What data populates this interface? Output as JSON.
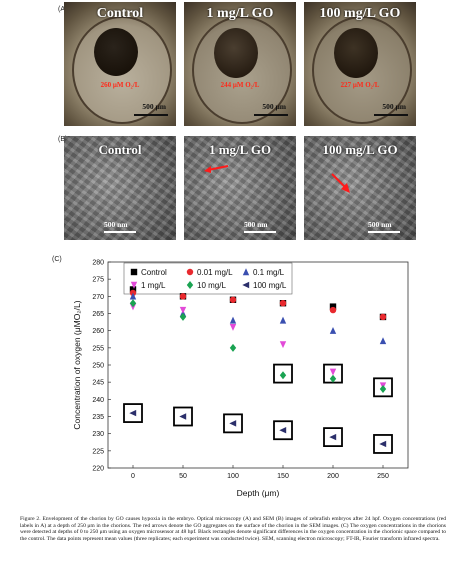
{
  "panel_a": {
    "letter": "(A)",
    "images": [
      {
        "title": "Control",
        "oxygen_label": "260 μM O₂/L",
        "scale_label": "500 μm"
      },
      {
        "title": "1 mg/L GO",
        "oxygen_label": "244 μM O₂/L",
        "scale_label": "500 μm"
      },
      {
        "title": "100 mg/L GO",
        "oxygen_label": "227 μM O₂/L",
        "scale_label": "500 μm"
      }
    ]
  },
  "panel_b": {
    "letter": "(B)",
    "images": [
      {
        "title": "Control",
        "scale_label": "500 nm"
      },
      {
        "title": "1 mg/L GO",
        "scale_label": "500 nm"
      },
      {
        "title": "100 mg/L GO",
        "scale_label": "500 nm"
      }
    ]
  },
  "panel_c": {
    "letter": "(C)"
  },
  "chart_data": {
    "type": "scatter",
    "xlabel": "Depth (μm)",
    "ylabel": "Concentration of oxygen (μMO₂/L)",
    "xlim": [
      -25,
      275
    ],
    "ylim": [
      220,
      280
    ],
    "xticks": [
      0,
      50,
      100,
      150,
      200,
      250
    ],
    "yticks": [
      220,
      225,
      230,
      235,
      240,
      245,
      250,
      255,
      260,
      265,
      270,
      275,
      280
    ],
    "grid": false,
    "legend_position": "top",
    "series": [
      {
        "name": "Control",
        "marker": "square",
        "color": "#000000",
        "x": [
          0,
          50,
          100,
          150,
          200,
          250
        ],
        "y": [
          272,
          270,
          269,
          268,
          267,
          264
        ]
      },
      {
        "name": "0.01 mg/L",
        "marker": "circle",
        "color": "#e8292e",
        "x": [
          0,
          50,
          100,
          150,
          200,
          250
        ],
        "y": [
          271,
          270,
          269,
          268,
          266,
          264
        ]
      },
      {
        "name": "0.1 mg/L",
        "marker": "triangle-up",
        "color": "#3a4fb0",
        "x": [
          0,
          50,
          100,
          150,
          200,
          250
        ],
        "y": [
          270,
          265,
          263,
          263,
          260,
          257
        ]
      },
      {
        "name": "1 mg/L",
        "marker": "triangle-down",
        "color": "#e24ad8",
        "x": [
          0,
          50,
          100,
          150,
          200,
          250
        ],
        "y": [
          267,
          266,
          261,
          256,
          248,
          244
        ]
      },
      {
        "name": "10 mg/L",
        "marker": "diamond",
        "color": "#1aa352",
        "x": [
          0,
          50,
          100,
          150,
          200,
          250
        ],
        "y": [
          268,
          264,
          255,
          247,
          246,
          243
        ]
      },
      {
        "name": "100 mg/L",
        "marker": "triangle-left",
        "color": "#2b2f6b",
        "x": [
          0,
          50,
          100,
          150,
          200,
          250
        ],
        "y": [
          236,
          235,
          233,
          231,
          229,
          227
        ]
      }
    ],
    "highlight_boxes": [
      {
        "x": 0,
        "y": 236
      },
      {
        "x": 50,
        "y": 235
      },
      {
        "x": 100,
        "y": 233
      },
      {
        "x": 150,
        "y": 231
      },
      {
        "x": 200,
        "y": 229
      },
      {
        "x": 250,
        "y": 227
      },
      {
        "x": 150,
        "y": 247.5
      },
      {
        "x": 200,
        "y": 247.5
      },
      {
        "x": 250,
        "y": 243.5
      }
    ]
  },
  "caption": "Figure 2. Envelopment of the chorion by GO causes hypoxia in the embryo. Optical microscopy (A) and SEM (B) images of zebrafish embryos after 24 hpf. Oxygen concentrations (red labels in A) at a depth of 250 μm in the chorions. The red arrows denote the GO aggregates on the surface of the chorion in the SEM images. (C) The oxygen concentrations in the chorions were detected at depths of 0 to 250 μm using an oxygen microsensor at 48 hpf. Black rectangles denote significant differences in the oxygen concentration in the chorionic space compared to the control. The data points represent mean values (three replicates; each experiment was conducted twice). SEM, scanning electron microscopy; FT-IR, Fourier transform infrared spectra."
}
